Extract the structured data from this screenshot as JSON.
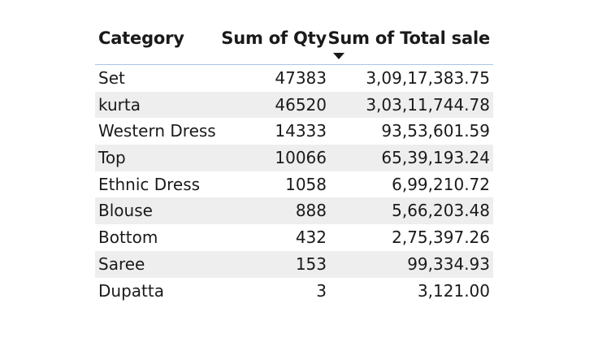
{
  "chart_data": {
    "type": "table",
    "columns": [
      "Category",
      "Sum of Qty",
      "Sum of Total sale"
    ],
    "sorted_column": "Sum of Total sale",
    "sort_direction": "descending",
    "rows": [
      {
        "category": "Set",
        "qty": "47383",
        "total": "3,09,17,383.75"
      },
      {
        "category": "kurta",
        "qty": "46520",
        "total": "3,03,11,744.78"
      },
      {
        "category": "Western Dress",
        "qty": "14333",
        "total": "93,53,601.59"
      },
      {
        "category": "Top",
        "qty": "10066",
        "total": "65,39,193.24"
      },
      {
        "category": "Ethnic Dress",
        "qty": "1058",
        "total": "6,99,210.72"
      },
      {
        "category": "Blouse",
        "qty": "888",
        "total": "5,66,203.48"
      },
      {
        "category": "Bottom",
        "qty": "432",
        "total": "2,75,397.26"
      },
      {
        "category": "Saree",
        "qty": "153",
        "total": "99,334.93"
      },
      {
        "category": "Dupatta",
        "qty": "3",
        "total": "3,121.00"
      }
    ],
    "colors": {
      "header_border": "#a9c6e3",
      "alt_row": "#eeeeee",
      "text": "#1a1a1a"
    }
  }
}
